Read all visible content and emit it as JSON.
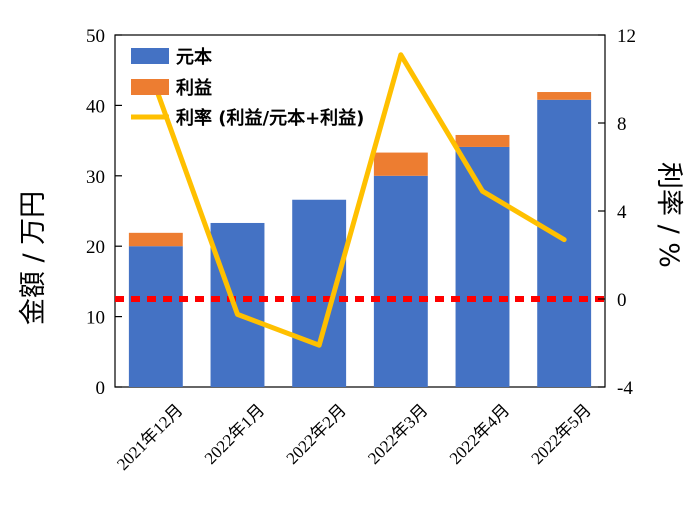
{
  "chart_data": {
    "type": "bar",
    "categories": [
      "2021年12月",
      "2022年1月",
      "2022年2月",
      "2022年3月",
      "2022年4月",
      "2022年5月"
    ],
    "series": [
      {
        "name": "元本",
        "type": "stacked-bar",
        "axis": "left",
        "color": "#4472C4",
        "values": [
          20.0,
          23.3,
          26.6,
          30.0,
          34.1,
          40.8
        ]
      },
      {
        "name": "利益",
        "type": "stacked-bar",
        "axis": "left",
        "color": "#ED7D31",
        "values": [
          1.9,
          0.0,
          0.0,
          3.3,
          1.7,
          1.1
        ]
      },
      {
        "name": "利率 (利益/元本+利益)",
        "type": "line",
        "axis": "right",
        "color": "#FFC000",
        "values": [
          9.6,
          -0.7,
          -2.1,
          11.1,
          4.9,
          2.7
        ]
      }
    ],
    "reference_line": {
      "axis": "right",
      "value": 0,
      "style": "dashed",
      "color": "#FF0000"
    },
    "ylabel": "金額 / 万円",
    "y2label": "利率 / %",
    "ylim": [
      0,
      50
    ],
    "yticks": [
      "0",
      "10",
      "20",
      "30",
      "40",
      "50"
    ],
    "y2lim": [
      -4,
      12
    ],
    "y2ticks": [
      "-4",
      "0",
      "4",
      "8",
      "12"
    ],
    "grid": false,
    "legend_position": "top-left"
  }
}
